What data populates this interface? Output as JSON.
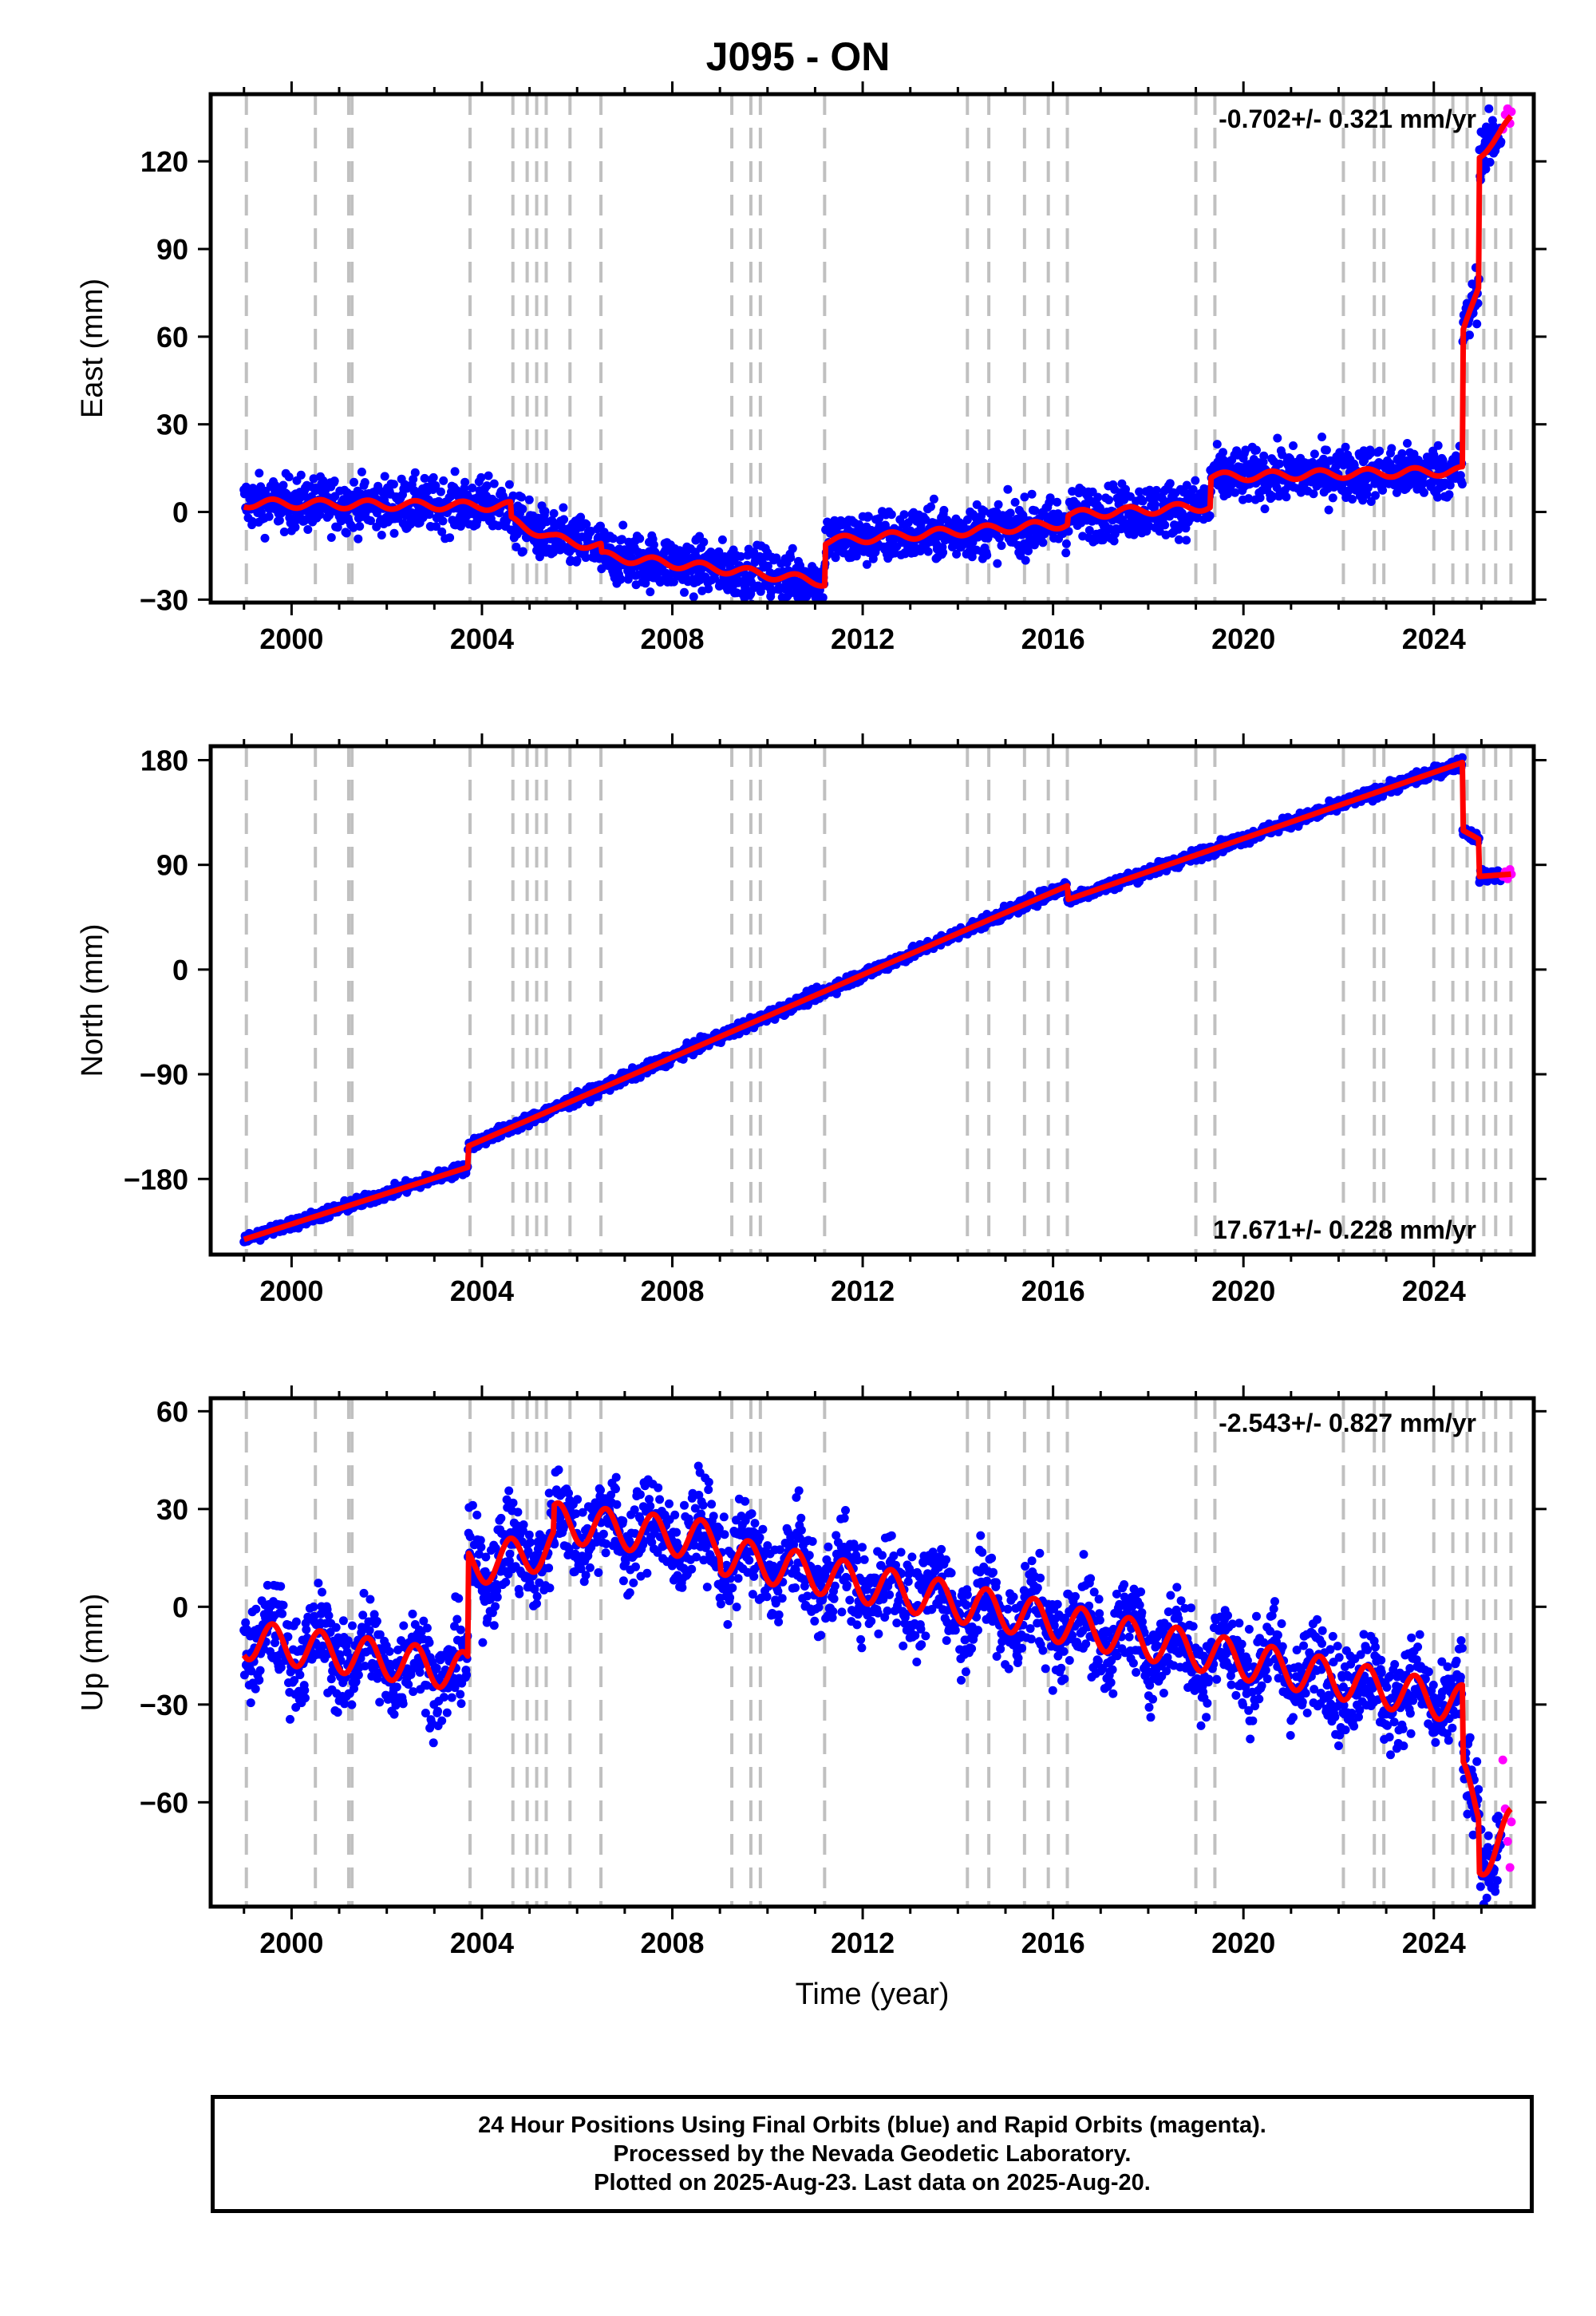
{
  "title": "J095 - ON",
  "colors": {
    "final_orbits": "#0000ff",
    "rapid_orbits": "#ff00ff",
    "model": "#ff0000",
    "event_lines": "#c0c0c0",
    "frame": "#000000"
  },
  "footer": {
    "line1": "24 Hour Positions Using Final Orbits (blue) and Rapid Orbits (magenta).",
    "line2": "Processed by the Nevada Geodetic Laboratory.",
    "line3": "Plotted on 2025-Aug-23. Last data on 2025-Aug-20."
  },
  "chart_data": [
    {
      "type": "scatter",
      "component": "East",
      "ylabel": "East (mm)",
      "xlabel": "",
      "xlim": [
        1998.3,
        2026.1
      ],
      "ylim": [
        -31,
        143
      ],
      "xticks": [
        2000,
        2004,
        2008,
        2012,
        2016,
        2020,
        2024
      ],
      "yticks": [
        -30,
        0,
        30,
        60,
        90,
        120
      ],
      "rate_label": "-0.702+/- 0.321 mm/yr",
      "noise": 4.5,
      "model": {
        "x": [
          1999.0,
          2004.6,
          2004.6,
          2005.5,
          2006.5,
          2006.5,
          2009.3,
          2011.2,
          2011.2,
          2016.3,
          2016.3,
          2019.3,
          2019.3,
          2024.6,
          2024.6,
          2024.95,
          2024.95,
          2025.62
        ],
        "y": [
          3,
          2,
          -3,
          -9,
          -12,
          -15,
          -20,
          -24,
          -10,
          -4,
          -1,
          2,
          12,
          14,
          60,
          78,
          122,
          134
        ]
      },
      "rapid_points": {
        "x": [
          2025.45,
          2025.5,
          2025.55,
          2025.6,
          2025.63
        ],
        "y": [
          131,
          136,
          138,
          133,
          137
        ]
      }
    },
    {
      "type": "scatter",
      "component": "North",
      "ylabel": "North (mm)",
      "xlabel": "",
      "xlim": [
        1998.3,
        2026.1
      ],
      "ylim": [
        -245,
        192
      ],
      "xticks": [
        2000,
        2004,
        2008,
        2012,
        2016,
        2020,
        2024
      ],
      "yticks": [
        -180,
        -90,
        0,
        90,
        180
      ],
      "rate_label": "17.671+/- 0.228 mm/yr",
      "noise": 2.5,
      "model": {
        "x": [
          1999.0,
          2003.7,
          2003.7,
          2016.3,
          2016.3,
          2024.6,
          2024.6,
          2024.95,
          2024.95,
          2025.62
        ],
        "y": [
          -232,
          -170,
          -152,
          72,
          60,
          178,
          120,
          112,
          80,
          82
        ]
      },
      "rapid_points": {
        "x": [
          2025.45,
          2025.5,
          2025.55,
          2025.6,
          2025.63
        ],
        "y": [
          80,
          84,
          78,
          86,
          82
        ]
      }
    },
    {
      "type": "scatter",
      "component": "Up",
      "ylabel": "Up (mm)",
      "xlabel": "Time (year)",
      "xlim": [
        1998.3,
        2026.1
      ],
      "ylim": [
        -92,
        64
      ],
      "xticks": [
        2000,
        2004,
        2008,
        2012,
        2016,
        2020,
        2024
      ],
      "yticks": [
        -60,
        -30,
        0,
        30,
        60
      ],
      "rate_label": "-2.543+/- 0.827 mm/yr",
      "noise": 7,
      "model": {
        "x": [
          1999.0,
          2003.7,
          2003.7,
          2005.5,
          2005.5,
          2009.0,
          2009.0,
          2024.6,
          2024.6,
          2024.95,
          2024.95,
          2025.62
        ],
        "y": [
          -10,
          -20,
          12,
          18,
          26,
          20,
          16,
          -30,
          -53,
          -62,
          -78,
          -68
        ]
      },
      "rapid_points": {
        "x": [
          2025.45,
          2025.5,
          2025.55,
          2025.6,
          2025.63
        ],
        "y": [
          -47,
          -62,
          -72,
          -80,
          -66
        ]
      }
    }
  ],
  "event_years": [
    1999.05,
    2000.5,
    2001.2,
    2001.27,
    2003.75,
    2004.65,
    2004.95,
    2005.15,
    2005.35,
    2005.85,
    2006.5,
    2009.25,
    2009.65,
    2009.85,
    2011.2,
    2014.2,
    2014.65,
    2015.4,
    2015.9,
    2016.3,
    2019.0,
    2019.4,
    2022.1,
    2022.75,
    2022.95,
    2024.0,
    2024.4,
    2024.7,
    2025.05,
    2025.3,
    2025.62
  ]
}
